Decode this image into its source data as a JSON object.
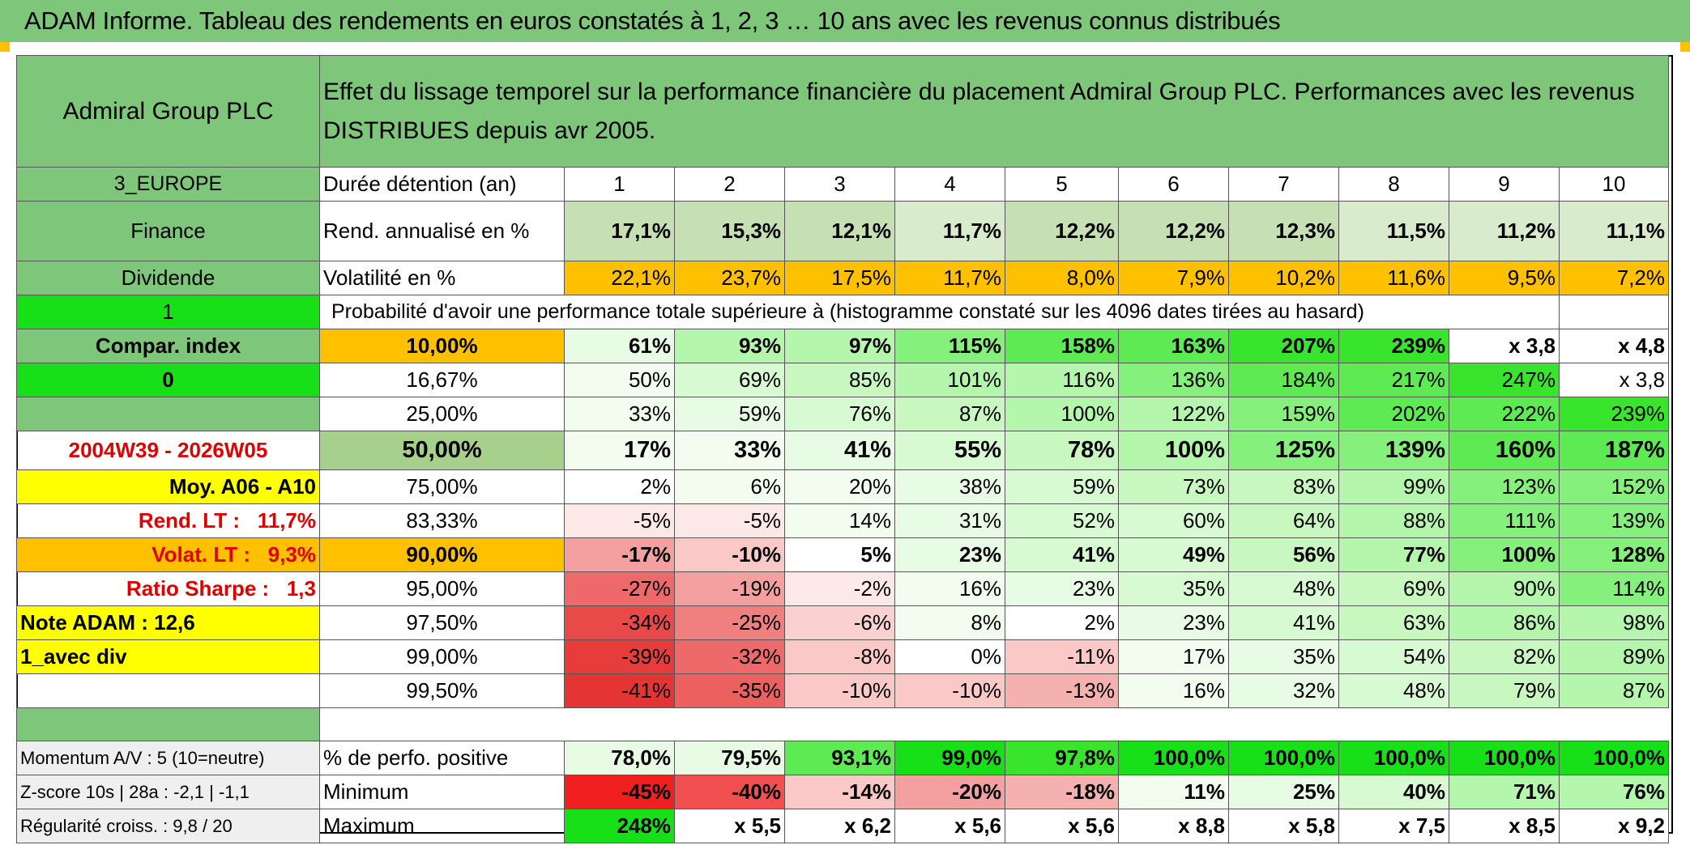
{
  "title": "ADAM Informe. Tableau des rendements en euros constatés à 1, 2, 3 … 10 ans avec les revenus connus distribués",
  "header": {
    "company": "Admiral Group PLC",
    "description": "Effet du lissage temporel sur la performance financière du placement Admiral Group PLC. Performances avec les revenus DISTRIBUES depuis avr 2005."
  },
  "left": {
    "region": "3_EUROPE",
    "sector": "Finance",
    "type": "Dividende",
    "one": "1",
    "compar": "Compar. index",
    "zero": "0",
    "period": "2004W39 - 2026W05",
    "moy": "Moy. A06 - A10",
    "rend_lt_label": "Rend. LT :",
    "rend_lt_value": "11,7%",
    "volat_lt_label": "Volat. LT :",
    "volat_lt_value": "9,3%",
    "sharpe_label": "Ratio Sharpe :",
    "sharpe_value": "1,3",
    "note": "Note ADAM : 12,6",
    "avec_div": "1_avec div",
    "momentum": "Momentum A/V : 5 (10=neutre)",
    "zscore": "Z-score 10s | 28a : -2,1 | -1,1",
    "regularite": "Régularité croiss. : 9,8 / 20"
  },
  "labels": {
    "duree": "Durée détention (an)",
    "rend": "Rend. annualisé en %",
    "volat": "Volatilité en %",
    "proba": "Probabilité d'avoir une performance totale supérieure à (histogramme constaté sur les 4096 dates tirées au hasard)",
    "positive": "% de perfo. positive",
    "minimum": "Minimum",
    "maximum": "Maximum"
  },
  "years": [
    "1",
    "2",
    "3",
    "4",
    "5",
    "6",
    "7",
    "8",
    "9",
    "10"
  ],
  "rend": [
    "17,1%",
    "15,3%",
    "12,1%",
    "11,7%",
    "12,2%",
    "12,2%",
    "12,3%",
    "11,5%",
    "11,2%",
    "11,1%"
  ],
  "volat": [
    "22,1%",
    "23,7%",
    "17,5%",
    "11,7%",
    "8,0%",
    "7,9%",
    "10,2%",
    "11,6%",
    "9,5%",
    "7,2%"
  ],
  "proba_rows": [
    {
      "p": "10,00%",
      "v": [
        "61%",
        "93%",
        "97%",
        "115%",
        "158%",
        "163%",
        "207%",
        "239%",
        "x 3,8",
        "x 4,8"
      ]
    },
    {
      "p": "16,67%",
      "v": [
        "50%",
        "69%",
        "85%",
        "101%",
        "116%",
        "136%",
        "184%",
        "217%",
        "247%",
        "x 3,8"
      ]
    },
    {
      "p": "25,00%",
      "v": [
        "33%",
        "59%",
        "76%",
        "87%",
        "100%",
        "122%",
        "159%",
        "202%",
        "222%",
        "239%"
      ]
    },
    {
      "p": "50,00%",
      "v": [
        "17%",
        "33%",
        "41%",
        "55%",
        "78%",
        "100%",
        "125%",
        "139%",
        "160%",
        "187%"
      ]
    },
    {
      "p": "75,00%",
      "v": [
        "2%",
        "6%",
        "20%",
        "38%",
        "59%",
        "73%",
        "83%",
        "99%",
        "123%",
        "152%"
      ]
    },
    {
      "p": "83,33%",
      "v": [
        "-5%",
        "-5%",
        "14%",
        "31%",
        "52%",
        "60%",
        "64%",
        "88%",
        "111%",
        "139%"
      ]
    },
    {
      "p": "90,00%",
      "v": [
        "-17%",
        "-10%",
        "5%",
        "23%",
        "41%",
        "49%",
        "56%",
        "77%",
        "100%",
        "128%"
      ]
    },
    {
      "p": "95,00%",
      "v": [
        "-27%",
        "-19%",
        "-2%",
        "16%",
        "23%",
        "35%",
        "48%",
        "69%",
        "90%",
        "114%"
      ]
    },
    {
      "p": "97,50%",
      "v": [
        "-34%",
        "-25%",
        "-6%",
        "8%",
        "2%",
        "23%",
        "41%",
        "63%",
        "86%",
        "98%"
      ]
    },
    {
      "p": "99,00%",
      "v": [
        "-39%",
        "-32%",
        "-8%",
        "0%",
        "-11%",
        "17%",
        "35%",
        "54%",
        "82%",
        "89%"
      ]
    },
    {
      "p": "99,50%",
      "v": [
        "-41%",
        "-35%",
        "-10%",
        "-10%",
        "-13%",
        "16%",
        "32%",
        "48%",
        "79%",
        "87%"
      ]
    }
  ],
  "positive": [
    "78,0%",
    "79,5%",
    "93,1%",
    "99,0%",
    "97,8%",
    "100,0%",
    "100,0%",
    "100,0%",
    "100,0%",
    "100,0%"
  ],
  "minimum": [
    "-45%",
    "-40%",
    "-14%",
    "-20%",
    "-18%",
    "11%",
    "25%",
    "40%",
    "71%",
    "76%"
  ],
  "maximum": [
    "248%",
    "x 5,5",
    "x 6,2",
    "x 5,6",
    "x 5,6",
    "x 8,8",
    "x 5,8",
    "x 7,5",
    "x 8,5",
    "x 9,2"
  ],
  "colors": {
    "header_green": "#7ec67a",
    "lime": "#18e018",
    "orange": "#ffc000",
    "yellow": "#ffff00",
    "sage": "#a8d08d",
    "text_red": "#e00000",
    "rend_fill": "#c6e0b4",
    "pos_light": "#e2f5dc",
    "neg_red": "#f24040"
  },
  "cell_fills": {
    "rend": [
      "#c6e0b4",
      "#c6e0b4",
      "#c6e0b4",
      "#d9ebcd",
      "#c6e0b4",
      "#c6e0b4",
      "#c6e0b4",
      "#d9ebcd",
      "#d9ebcd",
      "#d9ebcd"
    ],
    "volat": [
      "#ffc000",
      "#ffc000",
      "#ffc000",
      "#ffc000",
      "#ffc000",
      "#ffc000",
      "#ffc000",
      "#ffc000",
      "#ffc000",
      "#ffc000"
    ],
    "proba": [
      [
        "#e8fbe4",
        "#b4f6ac",
        "#b4f6ac",
        "#86f07c",
        "#5eea52",
        "#5eea52",
        "#38e42c",
        "#38e42c",
        "#ffffff",
        "#ffffff"
      ],
      [
        "#f2fdf0",
        "#d8fad2",
        "#c8f8c0",
        "#b4f6ac",
        "#b4f6ac",
        "#86f07c",
        "#5eea52",
        "#5eea52",
        "#38e42c",
        "#ffffff"
      ],
      [
        "#f2fdf0",
        "#e8fbe4",
        "#d8fad2",
        "#c8f8c0",
        "#b4f6ac",
        "#b4f6ac",
        "#86f07c",
        "#5eea52",
        "#5eea52",
        "#38e42c"
      ],
      [
        "#f2fdf0",
        "#f2fdf0",
        "#e8fbe4",
        "#d8fad2",
        "#c8f8c0",
        "#b4f6ac",
        "#86f07c",
        "#86f07c",
        "#5eea52",
        "#5eea52"
      ],
      [
        "#ffffff",
        "#f2fdf0",
        "#f2fdf0",
        "#e8fbe4",
        "#d8fad2",
        "#c8f8c0",
        "#c8f8c0",
        "#b4f6ac",
        "#86f07c",
        "#86f07c"
      ],
      [
        "#fde8e8",
        "#fde8e8",
        "#f2fdf0",
        "#e8fbe4",
        "#d8fad2",
        "#d8fad2",
        "#c8f8c0",
        "#b4f6ac",
        "#86f07c",
        "#86f07c"
      ],
      [
        "#f5a0a0",
        "#fbc8c8",
        "#ffffff",
        "#e8fbe4",
        "#d8fad2",
        "#d8fad2",
        "#c8f8c0",
        "#b4f6ac",
        "#86f07c",
        "#86f07c"
      ],
      [
        "#ee6a6a",
        "#f5a0a0",
        "#fde8e8",
        "#f2fdf0",
        "#e8fbe4",
        "#d8fad2",
        "#d8fad2",
        "#c8f8c0",
        "#b4f6ac",
        "#86f07c"
      ],
      [
        "#e84a4a",
        "#f08080",
        "#fbd0d0",
        "#f2fdf0",
        "#ffffff",
        "#e8fbe4",
        "#d8fad2",
        "#c8f8c0",
        "#b4f6ac",
        "#b4f6ac"
      ],
      [
        "#e63c3c",
        "#ee6a6a",
        "#fbc8c8",
        "#ffffff",
        "#fbc8c8",
        "#f2fdf0",
        "#e8fbe4",
        "#d8fad2",
        "#c8f8c0",
        "#b4f6ac"
      ],
      [
        "#e43434",
        "#ec6060",
        "#fbc8c8",
        "#fbc8c8",
        "#f5b0b0",
        "#f2fdf0",
        "#e8fbe4",
        "#d8fad2",
        "#c8f8c0",
        "#b4f6ac"
      ]
    ],
    "positive": [
      "#e8fbe4",
      "#e8fbe4",
      "#5eea52",
      "#18e018",
      "#38e42c",
      "#18e018",
      "#18e018",
      "#18e018",
      "#18e018",
      "#18e018"
    ],
    "minimum": [
      "#f02020",
      "#f25050",
      "#fbc8c8",
      "#f5a0a0",
      "#f5b0b0",
      "#f2fdf0",
      "#e8fbe4",
      "#d8fad2",
      "#b4f6ac",
      "#b4f6ac"
    ],
    "maximum": [
      "#18e018",
      "#ffffff",
      "#ffffff",
      "#ffffff",
      "#ffffff",
      "#ffffff",
      "#ffffff",
      "#ffffff",
      "#ffffff",
      "#ffffff"
    ]
  }
}
